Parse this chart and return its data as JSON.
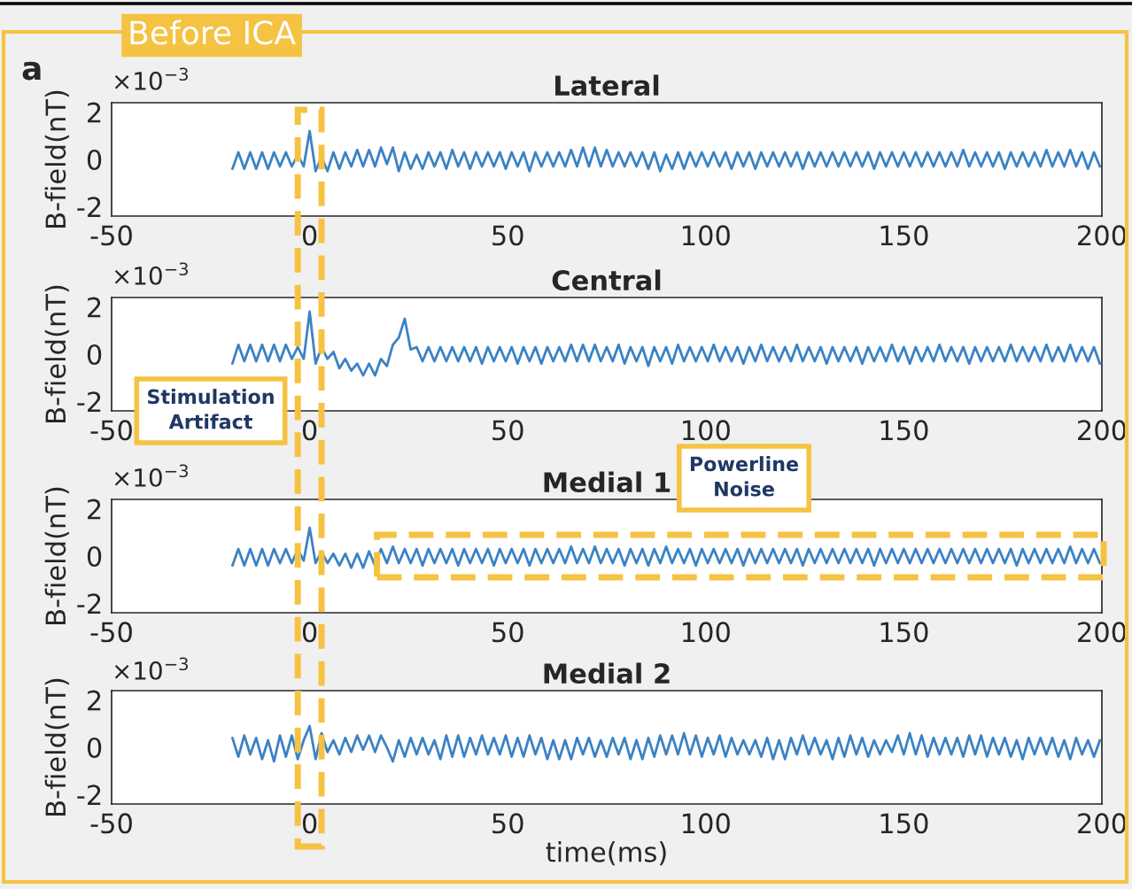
{
  "chart_data": [
    {
      "type": "line",
      "title": "Lateral",
      "ylabel": "B-field(nT)",
      "annotations": [
        "×10$^{−3}$",
        "a",
        "Before ICA"
      ],
      "xlim": [
        -50,
        200
      ],
      "xticks": [
        -50,
        0,
        50,
        100,
        150,
        200
      ],
      "ylim": [
        -2.4,
        2.4
      ],
      "yticks": [
        -2,
        0,
        2
      ],
      "grid": false,
      "legend": false,
      "x": [
        -19.5,
        -18,
        -16.5,
        -15,
        -13.5,
        -12,
        -10.5,
        -9,
        -7.5,
        -6,
        -4.5,
        -3,
        -1.5,
        0,
        1.5,
        3,
        4.5,
        6,
        7.5,
        9,
        10.5,
        12,
        13.5,
        15,
        16.5,
        18,
        19.5,
        21,
        22.5,
        24,
        25.5,
        27,
        28.5,
        30,
        31.5,
        33,
        34.5,
        36,
        37.5,
        39,
        40.5,
        42,
        43.5,
        45,
        46.5,
        48,
        49.5,
        51,
        52.5,
        54,
        55.5,
        57,
        58.5,
        60,
        61.5,
        63,
        64.5,
        66,
        67.5,
        69,
        70.5,
        72,
        73.5,
        75,
        76.5,
        78,
        79.5,
        81,
        82.5,
        84,
        85.5,
        87,
        88.5,
        90,
        91.5,
        93,
        94.5,
        96,
        97.5,
        99,
        100.5,
        102,
        103.5,
        105,
        106.5,
        108,
        109.5,
        111,
        112.5,
        114,
        115.5,
        117,
        118.5,
        120,
        121.5,
        123,
        124.5,
        126,
        127.5,
        129,
        130.5,
        132,
        133.5,
        135,
        136.5,
        138,
        139.5,
        141,
        142.5,
        144,
        145.5,
        147,
        148.5,
        150,
        151.5,
        153,
        154.5,
        156,
        157.5,
        159,
        160.5,
        162,
        163.5,
        165,
        166.5,
        168,
        169.5,
        171,
        172.5,
        174,
        175.5,
        177,
        178.5,
        180,
        181.5,
        183,
        184.5,
        186,
        187.5,
        189,
        190.5,
        192,
        193.5,
        195,
        196.5,
        198,
        199.5
      ],
      "series": [
        {
          "color": "#3b82c4",
          "values": [
            -0.4,
            0.3,
            -0.4,
            0.3,
            -0.4,
            0.3,
            -0.4,
            0.3,
            -0.3,
            0.3,
            -0.3,
            0.2,
            -0.3,
            1.2,
            -0.5,
            0.1,
            -0.5,
            0.3,
            -0.4,
            0.3,
            -0.3,
            0.4,
            -0.3,
            0.4,
            -0.3,
            0.5,
            -0.2,
            0.5,
            -0.5,
            0.3,
            -0.4,
            0.2,
            -0.4,
            0.3,
            -0.3,
            0.3,
            -0.4,
            0.4,
            -0.3,
            0.3,
            -0.4,
            0.3,
            -0.3,
            0.3,
            -0.3,
            0.3,
            -0.4,
            0.3,
            -0.3,
            0.3,
            -0.5,
            0.3,
            -0.3,
            0.3,
            -0.3,
            0.3,
            -0.3,
            0.4,
            -0.3,
            0.5,
            -0.3,
            0.5,
            -0.3,
            0.4,
            -0.3,
            0.3,
            -0.3,
            0.3,
            -0.3,
            0.3,
            -0.4,
            0.3,
            -0.5,
            0.2,
            -0.4,
            0.3,
            -0.4,
            0.3,
            -0.3,
            0.3,
            -0.3,
            0.3,
            -0.3,
            0.3,
            -0.4,
            0.3,
            -0.3,
            0.3,
            -0.4,
            0.3,
            -0.3,
            0.3,
            -0.3,
            0.3,
            -0.3,
            0.3,
            -0.4,
            0.3,
            -0.3,
            0.3,
            -0.3,
            0.3,
            -0.3,
            0.3,
            -0.3,
            0.3,
            -0.3,
            0.3,
            -0.4,
            0.3,
            -0.3,
            0.3,
            -0.3,
            0.3,
            -0.3,
            0.3,
            -0.3,
            0.3,
            -0.3,
            0.3,
            -0.3,
            0.3,
            -0.3,
            0.4,
            -0.3,
            0.3,
            -0.3,
            0.3,
            -0.3,
            0.3,
            -0.4,
            0.3,
            -0.3,
            0.3,
            -0.3,
            0.3,
            -0.3,
            0.4,
            -0.3,
            0.3,
            -0.3,
            0.4,
            -0.3,
            0.3,
            -0.4,
            0.3,
            -0.3
          ]
        }
      ]
    },
    {
      "type": "line",
      "title": "Central",
      "ylabel": "B-field(nT)",
      "annotations": [
        "×10$^{−3}$",
        "Stimulation Artifact"
      ],
      "xlim": [
        -50,
        200
      ],
      "xticks": [
        -50,
        0,
        50,
        100,
        150,
        200
      ],
      "ylim": [
        -2.4,
        2.4
      ],
      "yticks": [
        -2,
        0,
        2
      ],
      "grid": false,
      "legend": false,
      "x": [
        -19.5,
        -18,
        -16.5,
        -15,
        -13.5,
        -12,
        -10.5,
        -9,
        -7.5,
        -6,
        -4.5,
        -3,
        -1.5,
        0,
        1.5,
        3,
        4.5,
        6,
        7.5,
        9,
        10.5,
        12,
        13.5,
        15,
        16.5,
        18,
        19.5,
        21,
        22.5,
        24,
        25.5,
        27,
        28.5,
        30,
        31.5,
        33,
        34.5,
        36,
        37.5,
        39,
        40.5,
        42,
        43.5,
        45,
        46.5,
        48,
        49.5,
        51,
        52.5,
        54,
        55.5,
        57,
        58.5,
        60,
        61.5,
        63,
        64.5,
        66,
        67.5,
        69,
        70.5,
        72,
        73.5,
        75,
        76.5,
        78,
        79.5,
        81,
        82.5,
        84,
        85.5,
        87,
        88.5,
        90,
        91.5,
        93,
        94.5,
        96,
        97.5,
        99,
        100.5,
        102,
        103.5,
        105,
        106.5,
        108,
        109.5,
        111,
        112.5,
        114,
        115.5,
        117,
        118.5,
        120,
        121.5,
        123,
        124.5,
        126,
        127.5,
        129,
        130.5,
        132,
        133.5,
        135,
        136.5,
        138,
        139.5,
        141,
        142.5,
        144,
        145.5,
        147,
        148.5,
        150,
        151.5,
        153,
        154.5,
        156,
        157.5,
        159,
        160.5,
        162,
        163.5,
        165,
        166.5,
        168,
        169.5,
        171,
        172.5,
        174,
        175.5,
        177,
        178.5,
        180,
        181.5,
        183,
        184.5,
        186,
        187.5,
        189,
        190.5,
        192,
        193.5,
        195,
        196.5,
        198,
        199.5
      ],
      "series": [
        {
          "color": "#3b82c4",
          "values": [
            -0.4,
            0.4,
            -0.3,
            0.4,
            -0.3,
            0.4,
            -0.3,
            0.4,
            -0.3,
            0.4,
            -0.2,
            0.3,
            -0.2,
            1.8,
            -0.4,
            0.3,
            -0.2,
            0.1,
            -0.6,
            -0.2,
            -0.7,
            -0.4,
            -0.9,
            -0.4,
            -0.9,
            -0.2,
            -0.5,
            0.4,
            0.7,
            1.5,
            0.2,
            0.3,
            -0.3,
            0.3,
            -0.3,
            0.3,
            -0.3,
            0.3,
            -0.3,
            0.3,
            -0.3,
            0.3,
            -0.4,
            0.3,
            -0.3,
            0.3,
            -0.3,
            0.3,
            -0.4,
            0.3,
            -0.3,
            0.3,
            -0.4,
            0.3,
            -0.3,
            0.3,
            -0.3,
            0.4,
            -0.3,
            0.4,
            -0.3,
            0.4,
            -0.3,
            0.3,
            -0.3,
            0.4,
            -0.4,
            0.3,
            -0.3,
            0.3,
            -0.5,
            0.3,
            -0.3,
            0.3,
            -0.4,
            0.4,
            -0.3,
            0.3,
            -0.3,
            0.3,
            -0.3,
            0.4,
            -0.3,
            0.3,
            -0.3,
            0.3,
            -0.4,
            0.3,
            -0.3,
            0.4,
            -0.3,
            0.3,
            -0.3,
            0.3,
            -0.3,
            0.4,
            -0.3,
            0.3,
            -0.3,
            0.3,
            -0.4,
            0.3,
            -0.3,
            0.3,
            -0.3,
            0.3,
            -0.4,
            0.3,
            -0.3,
            0.3,
            -0.3,
            0.4,
            -0.3,
            0.3,
            -0.4,
            0.3,
            -0.3,
            0.3,
            -0.3,
            0.4,
            -0.3,
            0.3,
            -0.3,
            0.3,
            -0.4,
            0.3,
            -0.3,
            0.3,
            -0.3,
            0.3,
            -0.3,
            0.4,
            -0.3,
            0.3,
            -0.3,
            0.3,
            -0.3,
            0.4,
            -0.3,
            0.3,
            -0.3,
            0.4,
            -0.3,
            0.3,
            -0.3,
            0.3,
            -0.4
          ]
        }
      ]
    },
    {
      "type": "line",
      "title": "Medial 1",
      "ylabel": "B-field(nT)",
      "annotations": [
        "×10$^{−3}$",
        "Powerline Noise"
      ],
      "xlim": [
        -50,
        200
      ],
      "xticks": [
        -50,
        0,
        50,
        100,
        150,
        200
      ],
      "ylim": [
        -2.4,
        2.4
      ],
      "yticks": [
        -2,
        0,
        2
      ],
      "grid": false,
      "legend": false,
      "x": [
        -19.5,
        -18,
        -16.5,
        -15,
        -13.5,
        -12,
        -10.5,
        -9,
        -7.5,
        -6,
        -4.5,
        -3,
        -1.5,
        0,
        1.5,
        3,
        4.5,
        6,
        7.5,
        9,
        10.5,
        12,
        13.5,
        15,
        16.5,
        18,
        19.5,
        21,
        22.5,
        24,
        25.5,
        27,
        28.5,
        30,
        31.5,
        33,
        34.5,
        36,
        37.5,
        39,
        40.5,
        42,
        43.5,
        45,
        46.5,
        48,
        49.5,
        51,
        52.5,
        54,
        55.5,
        57,
        58.5,
        60,
        61.5,
        63,
        64.5,
        66,
        67.5,
        69,
        70.5,
        72,
        73.5,
        75,
        76.5,
        78,
        79.5,
        81,
        82.5,
        84,
        85.5,
        87,
        88.5,
        90,
        91.5,
        93,
        94.5,
        96,
        97.5,
        99,
        100.5,
        102,
        103.5,
        105,
        106.5,
        108,
        109.5,
        111,
        112.5,
        114,
        115.5,
        117,
        118.5,
        120,
        121.5,
        123,
        124.5,
        126,
        127.5,
        129,
        130.5,
        132,
        133.5,
        135,
        136.5,
        138,
        139.5,
        141,
        142.5,
        144,
        145.5,
        147,
        148.5,
        150,
        151.5,
        153,
        154.5,
        156,
        157.5,
        159,
        160.5,
        162,
        163.5,
        165,
        166.5,
        168,
        169.5,
        171,
        172.5,
        174,
        175.5,
        177,
        178.5,
        180,
        181.5,
        183,
        184.5,
        186,
        187.5,
        189,
        190.5,
        192,
        193.5,
        195,
        196.5,
        198,
        199.5
      ],
      "series": [
        {
          "color": "#3b82c4",
          "values": [
            -0.4,
            0.3,
            -0.4,
            0.3,
            -0.4,
            0.3,
            -0.4,
            0.3,
            -0.3,
            0.3,
            -0.3,
            0.3,
            -0.2,
            1.2,
            -0.3,
            0.2,
            -0.3,
            0.1,
            -0.4,
            0.1,
            -0.5,
            0.1,
            -0.5,
            0.2,
            -0.4,
            0.3,
            -0.3,
            0.4,
            -0.3,
            0.3,
            -0.3,
            0.3,
            -0.4,
            0.3,
            -0.3,
            0.3,
            -0.3,
            0.3,
            -0.4,
            0.3,
            -0.3,
            0.3,
            -0.3,
            0.3,
            -0.4,
            0.3,
            -0.3,
            0.3,
            -0.3,
            0.3,
            -0.4,
            0.3,
            -0.3,
            0.3,
            -0.3,
            0.3,
            -0.3,
            0.4,
            -0.3,
            0.3,
            -0.3,
            0.4,
            -0.3,
            0.3,
            -0.3,
            0.3,
            -0.4,
            0.3,
            -0.3,
            0.3,
            -0.4,
            0.3,
            -0.3,
            0.4,
            -0.3,
            0.3,
            -0.3,
            0.3,
            -0.4,
            0.3,
            -0.3,
            0.3,
            -0.3,
            0.3,
            -0.3,
            0.3,
            -0.4,
            0.3,
            -0.3,
            0.3,
            -0.3,
            0.3,
            -0.3,
            0.3,
            -0.3,
            0.3,
            -0.4,
            0.3,
            -0.3,
            0.3,
            -0.3,
            0.3,
            -0.3,
            0.3,
            -0.3,
            0.3,
            -0.3,
            0.3,
            -0.4,
            0.3,
            -0.3,
            0.3,
            -0.3,
            0.3,
            -0.3,
            0.3,
            -0.3,
            0.3,
            -0.3,
            0.3,
            -0.3,
            0.3,
            -0.3,
            0.3,
            -0.3,
            0.3,
            -0.3,
            0.3,
            -0.3,
            0.3,
            -0.3,
            0.3,
            -0.4,
            0.3,
            -0.3,
            0.3,
            -0.3,
            0.3,
            -0.3,
            0.3,
            -0.3,
            0.4,
            -0.3,
            0.3,
            -0.3,
            0.3,
            -0.3
          ]
        }
      ]
    },
    {
      "type": "line",
      "title": "Medial 2",
      "xlabel": "time(ms)",
      "ylabel": "B-field(nT)",
      "annotations": [
        "×10$^{−3}$"
      ],
      "xlim": [
        -50,
        200
      ],
      "xticks": [
        -50,
        0,
        50,
        100,
        150,
        200
      ],
      "ylim": [
        -2.4,
        2.4
      ],
      "yticks": [
        -2,
        0,
        2
      ],
      "grid": false,
      "legend": false,
      "x": [
        -19.5,
        -18,
        -16.5,
        -15,
        -13.5,
        -12,
        -10.5,
        -9,
        -7.5,
        -6,
        -4.5,
        -3,
        -1.5,
        0,
        1.5,
        3,
        4.5,
        6,
        7.5,
        9,
        10.5,
        12,
        13.5,
        15,
        16.5,
        18,
        19.5,
        21,
        22.5,
        24,
        25.5,
        27,
        28.5,
        30,
        31.5,
        33,
        34.5,
        36,
        37.5,
        39,
        40.5,
        42,
        43.5,
        45,
        46.5,
        48,
        49.5,
        51,
        52.5,
        54,
        55.5,
        57,
        58.5,
        60,
        61.5,
        63,
        64.5,
        66,
        67.5,
        69,
        70.5,
        72,
        73.5,
        75,
        76.5,
        78,
        79.5,
        81,
        82.5,
        84,
        85.5,
        87,
        88.5,
        90,
        91.5,
        93,
        94.5,
        96,
        97.5,
        99,
        100.5,
        102,
        103.5,
        105,
        106.5,
        108,
        109.5,
        111,
        112.5,
        114,
        115.5,
        117,
        118.5,
        120,
        121.5,
        123,
        124.5,
        126,
        127.5,
        129,
        130.5,
        132,
        133.5,
        135,
        136.5,
        138,
        139.5,
        141,
        142.5,
        144,
        145.5,
        147,
        148.5,
        150,
        151.5,
        153,
        154.5,
        156,
        157.5,
        159,
        160.5,
        162,
        163.5,
        165,
        166.5,
        168,
        169.5,
        171,
        172.5,
        174,
        175.5,
        177,
        178.5,
        180,
        181.5,
        183,
        184.5,
        186,
        187.5,
        189,
        190.5,
        192,
        193.5,
        195,
        196.5,
        198,
        199.5
      ],
      "series": [
        {
          "color": "#3b82c4",
          "values": [
            0.4,
            -0.4,
            0.5,
            -0.3,
            0.4,
            -0.5,
            0.3,
            -0.6,
            0.5,
            -0.4,
            0.5,
            -0.5,
            0.3,
            0.9,
            -0.5,
            0.6,
            -0.2,
            0.3,
            -0.3,
            0.4,
            -0.2,
            0.5,
            -0.1,
            0.5,
            -0.2,
            0.5,
            0.0,
            -0.6,
            0.3,
            -0.4,
            0.4,
            -0.3,
            0.4,
            -0.3,
            0.3,
            -0.5,
            0.5,
            -0.4,
            0.5,
            -0.4,
            0.4,
            -0.3,
            0.5,
            -0.3,
            0.4,
            -0.3,
            0.5,
            -0.4,
            0.4,
            -0.4,
            0.5,
            -0.3,
            0.4,
            -0.5,
            0.3,
            -0.5,
            0.3,
            -0.5,
            0.4,
            -0.3,
            0.4,
            -0.4,
            0.3,
            -0.4,
            0.4,
            -0.3,
            0.4,
            -0.5,
            0.3,
            -0.5,
            0.4,
            -0.4,
            0.5,
            -0.3,
            0.5,
            -0.3,
            0.6,
            -0.3,
            0.5,
            -0.4,
            0.4,
            -0.3,
            0.5,
            -0.4,
            0.4,
            -0.3,
            0.3,
            -0.3,
            0.3,
            -0.4,
            0.4,
            -0.5,
            0.3,
            -0.5,
            0.4,
            -0.3,
            0.5,
            -0.3,
            0.4,
            -0.3,
            0.3,
            -0.5,
            0.4,
            -0.4,
            0.5,
            -0.3,
            0.4,
            -0.4,
            0.3,
            -0.3,
            0.3,
            -0.2,
            0.5,
            -0.3,
            0.6,
            -0.3,
            0.5,
            -0.4,
            0.4,
            -0.3,
            0.4,
            -0.3,
            0.4,
            -0.4,
            0.5,
            -0.3,
            0.5,
            -0.4,
            0.4,
            -0.3,
            0.4,
            -0.4,
            0.3,
            -0.5,
            0.4,
            -0.3,
            0.4,
            -0.3,
            0.4,
            -0.4,
            0.3,
            -0.5,
            0.4,
            -0.3,
            0.3,
            -0.4,
            0.3
          ]
        }
      ]
    }
  ]
}
